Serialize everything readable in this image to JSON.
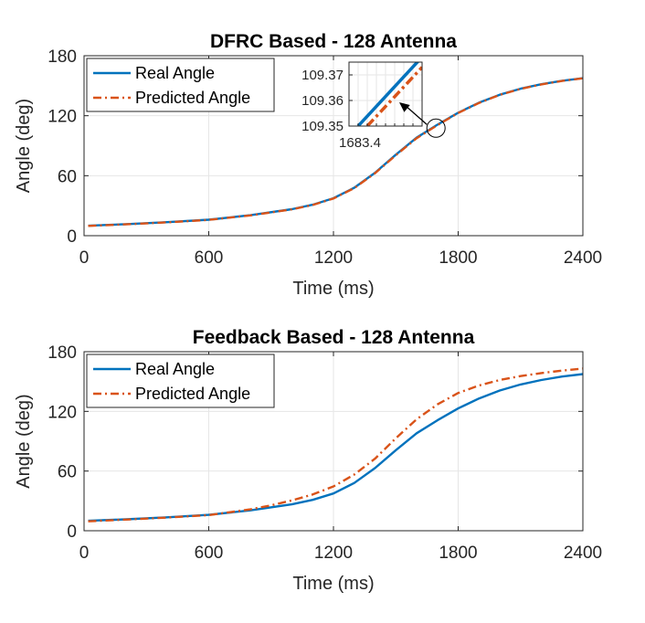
{
  "chart_data": [
    {
      "type": "line",
      "title": "DFRC Based - 128 Antenna",
      "xlabel": "Time (ms)",
      "ylabel": "Angle (deg)",
      "xlim": [
        0,
        2400
      ],
      "ylim": [
        0,
        180
      ],
      "xticks": [
        0,
        600,
        1200,
        1800,
        2400
      ],
      "yticks": [
        0,
        60,
        120,
        180
      ],
      "grid": true,
      "legend_position": "top-left",
      "series": [
        {
          "name": "Real Angle",
          "color": "#0072bd",
          "style": "solid",
          "x": [
            20,
            200,
            400,
            600,
            800,
            1000,
            1100,
            1200,
            1300,
            1400,
            1500,
            1600,
            1700,
            1800,
            1900,
            2000,
            2100,
            2200,
            2300,
            2400
          ],
          "y": [
            10,
            11.5,
            13.5,
            16,
            20.5,
            26.5,
            31,
            37.5,
            48,
            63,
            81,
            98,
            111,
            123,
            133,
            141,
            147,
            151.5,
            155,
            157.5
          ]
        },
        {
          "name": "Predicted Angle",
          "color": "#d95319",
          "style": "dashdot",
          "x": [
            20,
            200,
            400,
            600,
            800,
            1000,
            1100,
            1200,
            1300,
            1400,
            1500,
            1600,
            1700,
            1800,
            1900,
            2000,
            2100,
            2200,
            2300,
            2400
          ],
          "y": [
            9.8,
            11.3,
            13.3,
            15.8,
            20.3,
            26.3,
            30.7,
            37.2,
            47.6,
            62.5,
            80.5,
            97.5,
            110.6,
            122.7,
            132.8,
            140.8,
            146.8,
            151.3,
            154.8,
            157.4
          ]
        }
      ],
      "inset": {
        "xtick_label": "1683.4",
        "yticks": [
          109.35,
          109.36,
          109.37
        ],
        "ylim": [
          109.35,
          109.375
        ],
        "xlim": [
          1683.36,
          1683.44
        ],
        "series": [
          {
            "name": "Real Angle",
            "x": [
              1683.37,
              1683.44
            ],
            "y": [
              109.35,
              109.377
            ]
          },
          {
            "name": "Predicted Angle",
            "x": [
              1683.38,
              1683.44
            ],
            "y": [
              109.35,
              109.373
            ]
          }
        ],
        "zoom_target": {
          "x": 1680,
          "y": 109.4
        }
      }
    },
    {
      "type": "line",
      "title": "Feedback Based - 128 Antenna",
      "xlabel": "Time (ms)",
      "ylabel": "Angle (deg)",
      "xlim": [
        0,
        2400
      ],
      "ylim": [
        0,
        180
      ],
      "xticks": [
        0,
        600,
        1200,
        1800,
        2400
      ],
      "yticks": [
        0,
        60,
        120,
        180
      ],
      "grid": true,
      "legend_position": "top-left",
      "series": [
        {
          "name": "Real Angle",
          "color": "#0072bd",
          "style": "solid",
          "x": [
            20,
            200,
            400,
            600,
            800,
            1000,
            1100,
            1200,
            1300,
            1400,
            1500,
            1600,
            1700,
            1800,
            1900,
            2000,
            2100,
            2200,
            2300,
            2400
          ],
          "y": [
            10,
            11.5,
            13.5,
            16,
            20.5,
            26.5,
            31,
            37.5,
            48,
            63,
            81,
            98,
            111,
            123,
            133,
            141,
            147,
            151.5,
            155,
            157.5
          ]
        },
        {
          "name": "Predicted Angle",
          "color": "#d95319",
          "style": "dashdot",
          "x": [
            20,
            200,
            400,
            600,
            800,
            900,
            1000,
            1100,
            1200,
            1300,
            1400,
            1500,
            1600,
            1700,
            1800,
            1900,
            2000,
            2100,
            2200,
            2300,
            2400
          ],
          "y": [
            9.5,
            11.2,
            13.2,
            15.7,
            21.5,
            25.5,
            30.5,
            36.5,
            44.5,
            56.5,
            72.5,
            93,
            112,
            127,
            138.5,
            146,
            151.5,
            155.5,
            158.5,
            161,
            163
          ]
        }
      ]
    }
  ]
}
